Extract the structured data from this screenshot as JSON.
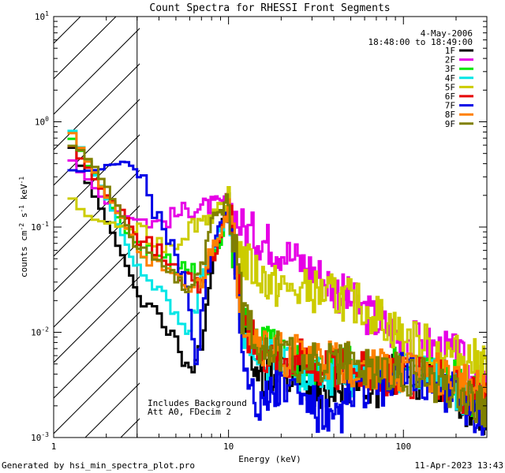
{
  "chart_data": {
    "type": "line",
    "title": "Count Spectra for RHESSI Front Segments",
    "xlabel": "Energy (keV)",
    "ylabel": "counts cm-2 s-1 keV-1",
    "xscale": "log",
    "yscale": "log",
    "xlim": [
      1,
      300
    ],
    "ylim": [
      0.001,
      10
    ],
    "x_ticks": [
      {
        "value": 1,
        "label": "1"
      },
      {
        "value": 10,
        "label": "10"
      },
      {
        "value": 100,
        "label": "100"
      }
    ],
    "y_ticks": [
      {
        "value": 0.001,
        "base": "10",
        "exp": "-3"
      },
      {
        "value": 0.01,
        "base": "10",
        "exp": "-2"
      },
      {
        "value": 0.1,
        "base": "10",
        "exp": "-1"
      },
      {
        "value": 1,
        "base": "10",
        "exp": "0"
      },
      {
        "value": 10,
        "base": "10",
        "exp": "1"
      }
    ],
    "date": "4-May-2006",
    "time_range": "18:48:00 to 18:49:00",
    "hatched_region_upper_keV": 3,
    "annotations": [
      "Includes Background",
      "Att A0, FDecim 2"
    ],
    "footer_left": "Generated by hsi_min_spectra_plot.pro",
    "footer_right": "11-Apr-2023 13:43",
    "series": [
      {
        "name": "1F",
        "color": "#000000",
        "points": [
          [
            1.2,
            0.75
          ],
          [
            1.5,
            0.3
          ],
          [
            2,
            0.12
          ],
          [
            2.5,
            0.05
          ],
          [
            3,
            0.025
          ],
          [
            4,
            0.015
          ],
          [
            5,
            0.008
          ],
          [
            6,
            0.004
          ],
          [
            7,
            0.008
          ],
          [
            8,
            0.04
          ],
          [
            10,
            0.18
          ],
          [
            11,
            0.06
          ],
          [
            12,
            0.01
          ],
          [
            15,
            0.004
          ],
          [
            20,
            0.004
          ],
          [
            30,
            0.003
          ],
          [
            50,
            0.0035
          ],
          [
            70,
            0.003
          ],
          [
            100,
            0.0045
          ],
          [
            150,
            0.003
          ],
          [
            200,
            0.0025
          ],
          [
            290,
            0.0015
          ]
        ]
      },
      {
        "name": "2F",
        "color": "#e600e6",
        "points": [
          [
            1.2,
            0.5
          ],
          [
            1.5,
            0.3
          ],
          [
            2,
            0.17
          ],
          [
            2.5,
            0.13
          ],
          [
            3,
            0.12
          ],
          [
            4,
            0.11
          ],
          [
            5,
            0.13
          ],
          [
            6,
            0.15
          ],
          [
            8,
            0.16
          ],
          [
            10,
            0.17
          ],
          [
            12,
            0.1
          ],
          [
            15,
            0.08
          ],
          [
            20,
            0.06
          ],
          [
            30,
            0.04
          ],
          [
            50,
            0.02
          ],
          [
            70,
            0.013
          ],
          [
            100,
            0.009
          ],
          [
            150,
            0.007
          ],
          [
            200,
            0.006
          ],
          [
            290,
            0.003
          ]
        ]
      },
      {
        "name": "3F",
        "color": "#00e600",
        "points": [
          [
            1.2,
            0.8
          ],
          [
            1.5,
            0.45
          ],
          [
            2,
            0.2
          ],
          [
            2.5,
            0.1
          ],
          [
            3,
            0.07
          ],
          [
            4,
            0.05
          ],
          [
            5,
            0.045
          ],
          [
            6,
            0.04
          ],
          [
            7,
            0.03
          ],
          [
            8,
            0.05
          ],
          [
            10,
            0.12
          ],
          [
            11,
            0.04
          ],
          [
            12,
            0.015
          ],
          [
            15,
            0.008
          ],
          [
            20,
            0.006
          ],
          [
            30,
            0.005
          ],
          [
            50,
            0.005
          ],
          [
            70,
            0.0045
          ],
          [
            100,
            0.0045
          ],
          [
            150,
            0.004
          ],
          [
            200,
            0.0035
          ],
          [
            290,
            0.002
          ]
        ]
      },
      {
        "name": "4F",
        "color": "#00e6e6",
        "points": [
          [
            1.2,
            0.95
          ],
          [
            1.5,
            0.5
          ],
          [
            2,
            0.2
          ],
          [
            2.5,
            0.08
          ],
          [
            3,
            0.04
          ],
          [
            4,
            0.025
          ],
          [
            5,
            0.015
          ],
          [
            6,
            0.01
          ],
          [
            7,
            0.03
          ],
          [
            8,
            0.06
          ],
          [
            10,
            0.15
          ],
          [
            11,
            0.05
          ],
          [
            12,
            0.012
          ],
          [
            15,
            0.006
          ],
          [
            20,
            0.005
          ],
          [
            30,
            0.004
          ],
          [
            50,
            0.004
          ],
          [
            70,
            0.004
          ],
          [
            100,
            0.004
          ],
          [
            150,
            0.0035
          ],
          [
            200,
            0.003
          ],
          [
            290,
            0.002
          ]
        ]
      },
      {
        "name": "5F",
        "color": "#cccc00",
        "points": [
          [
            1.2,
            0.2
          ],
          [
            1.5,
            0.13
          ],
          [
            2,
            0.11
          ],
          [
            2.5,
            0.1
          ],
          [
            3,
            0.09
          ],
          [
            4,
            0.07
          ],
          [
            5,
            0.07
          ],
          [
            6,
            0.1
          ],
          [
            7,
            0.12
          ],
          [
            8,
            0.13
          ],
          [
            10,
            0.15
          ],
          [
            12,
            0.05
          ],
          [
            15,
            0.035
          ],
          [
            20,
            0.025
          ],
          [
            30,
            0.025
          ],
          [
            50,
            0.02
          ],
          [
            70,
            0.015
          ],
          [
            100,
            0.009
          ],
          [
            150,
            0.007
          ],
          [
            200,
            0.006
          ],
          [
            290,
            0.005
          ]
        ]
      },
      {
        "name": "6F",
        "color": "#e60000",
        "points": [
          [
            1.2,
            0.7
          ],
          [
            1.5,
            0.4
          ],
          [
            2,
            0.2
          ],
          [
            2.5,
            0.15
          ],
          [
            3,
            0.08
          ],
          [
            4,
            0.06
          ],
          [
            5,
            0.04
          ],
          [
            6,
            0.03
          ],
          [
            7,
            0.025
          ],
          [
            8,
            0.05
          ],
          [
            10,
            0.14
          ],
          [
            11,
            0.05
          ],
          [
            12,
            0.012
          ],
          [
            15,
            0.007
          ],
          [
            20,
            0.006
          ],
          [
            30,
            0.005
          ],
          [
            50,
            0.0045
          ],
          [
            70,
            0.004
          ],
          [
            100,
            0.004
          ],
          [
            150,
            0.0035
          ],
          [
            200,
            0.003
          ],
          [
            290,
            0.002
          ]
        ]
      },
      {
        "name": "7F",
        "color": "#0000e6",
        "points": [
          [
            1.2,
            0.36
          ],
          [
            1.5,
            0.32
          ],
          [
            2,
            0.37
          ],
          [
            2.5,
            0.43
          ],
          [
            3,
            0.35
          ],
          [
            3.5,
            0.2
          ],
          [
            4,
            0.12
          ],
          [
            5,
            0.06
          ],
          [
            6,
            0.02
          ],
          [
            6.5,
            0.004
          ],
          [
            7,
            0.015
          ],
          [
            8,
            0.06
          ],
          [
            10,
            0.16
          ],
          [
            11,
            0.05
          ],
          [
            12,
            0.006
          ],
          [
            15,
            0.002
          ],
          [
            20,
            0.003
          ],
          [
            30,
            0.002
          ],
          [
            40,
            0.0012
          ],
          [
            50,
            0.0025
          ],
          [
            70,
            0.003
          ],
          [
            100,
            0.004
          ],
          [
            150,
            0.003
          ],
          [
            200,
            0.0025
          ],
          [
            290,
            0.0015
          ]
        ]
      },
      {
        "name": "8F",
        "color": "#ff8000",
        "points": [
          [
            1.2,
            0.9
          ],
          [
            1.5,
            0.5
          ],
          [
            2,
            0.2
          ],
          [
            2.5,
            0.12
          ],
          [
            3,
            0.06
          ],
          [
            4,
            0.04
          ],
          [
            5,
            0.03
          ],
          [
            6,
            0.025
          ],
          [
            7,
            0.03
          ],
          [
            8,
            0.06
          ],
          [
            10,
            0.15
          ],
          [
            11,
            0.05
          ],
          [
            12,
            0.015
          ],
          [
            15,
            0.008
          ],
          [
            20,
            0.006
          ],
          [
            30,
            0.006
          ],
          [
            50,
            0.005
          ],
          [
            70,
            0.0045
          ],
          [
            100,
            0.004
          ],
          [
            150,
            0.004
          ],
          [
            200,
            0.0035
          ],
          [
            290,
            0.0025
          ]
        ]
      },
      {
        "name": "9F",
        "color": "#808000",
        "points": [
          [
            1.2,
            0.6
          ],
          [
            1.5,
            0.5
          ],
          [
            2,
            0.25
          ],
          [
            2.5,
            0.12
          ],
          [
            3,
            0.06
          ],
          [
            4,
            0.04
          ],
          [
            5,
            0.03
          ],
          [
            6,
            0.025
          ],
          [
            7,
            0.04
          ],
          [
            8,
            0.1
          ],
          [
            10,
            0.2
          ],
          [
            11,
            0.06
          ],
          [
            12,
            0.015
          ],
          [
            15,
            0.008
          ],
          [
            20,
            0.006
          ],
          [
            30,
            0.005
          ],
          [
            50,
            0.005
          ],
          [
            70,
            0.0045
          ],
          [
            100,
            0.004
          ],
          [
            150,
            0.0035
          ],
          [
            200,
            0.003
          ],
          [
            290,
            0.002
          ]
        ]
      }
    ]
  }
}
